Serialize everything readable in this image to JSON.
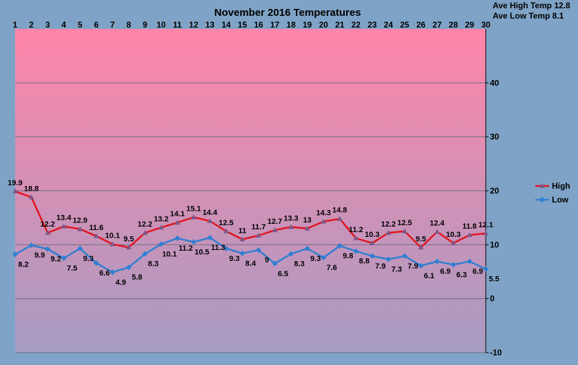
{
  "chart_data": {
    "type": "line",
    "title": "November 2016 Temperatures",
    "stats": [
      "Ave High Temp 12.8",
      "Ave Low Temp 8.1"
    ],
    "x": [
      1,
      2,
      3,
      4,
      5,
      6,
      7,
      8,
      9,
      10,
      11,
      12,
      13,
      14,
      15,
      16,
      17,
      18,
      19,
      20,
      21,
      22,
      23,
      24,
      25,
      26,
      27,
      28,
      29,
      30
    ],
    "ylim": [
      -10,
      50
    ],
    "yticks": [
      -10,
      0,
      10,
      20,
      30,
      40
    ],
    "xaxis_position": "top",
    "yaxis_position": "right",
    "grid": true,
    "legend": "right",
    "background_gradient": [
      "#FF85A9",
      "#A79CC3"
    ],
    "series": [
      {
        "name": "High",
        "color": "#E0141E",
        "marker_color": "#7A5A8C",
        "values": [
          19.9,
          18.8,
          12.2,
          13.4,
          12.9,
          11.6,
          10.1,
          9.5,
          12.2,
          13.2,
          14.1,
          15.1,
          14.4,
          12.5,
          11,
          11.7,
          12.7,
          13.3,
          13,
          14.3,
          14.8,
          11.2,
          10.3,
          12.2,
          12.5,
          9.5,
          12.4,
          10.3,
          11.8,
          12.1
        ]
      },
      {
        "name": "Low",
        "color": "#2F7FD0",
        "marker_color": "#2F7FD0",
        "values": [
          8.2,
          9.9,
          9.2,
          7.5,
          9.3,
          6.6,
          4.9,
          5.8,
          8.3,
          10.1,
          11.2,
          10.5,
          11.3,
          9.3,
          8.4,
          9,
          6.5,
          8.3,
          9.3,
          7.6,
          9.8,
          8.8,
          7.9,
          7.3,
          7.9,
          6.1,
          6.9,
          6.3,
          6.9,
          5.5
        ]
      }
    ]
  }
}
